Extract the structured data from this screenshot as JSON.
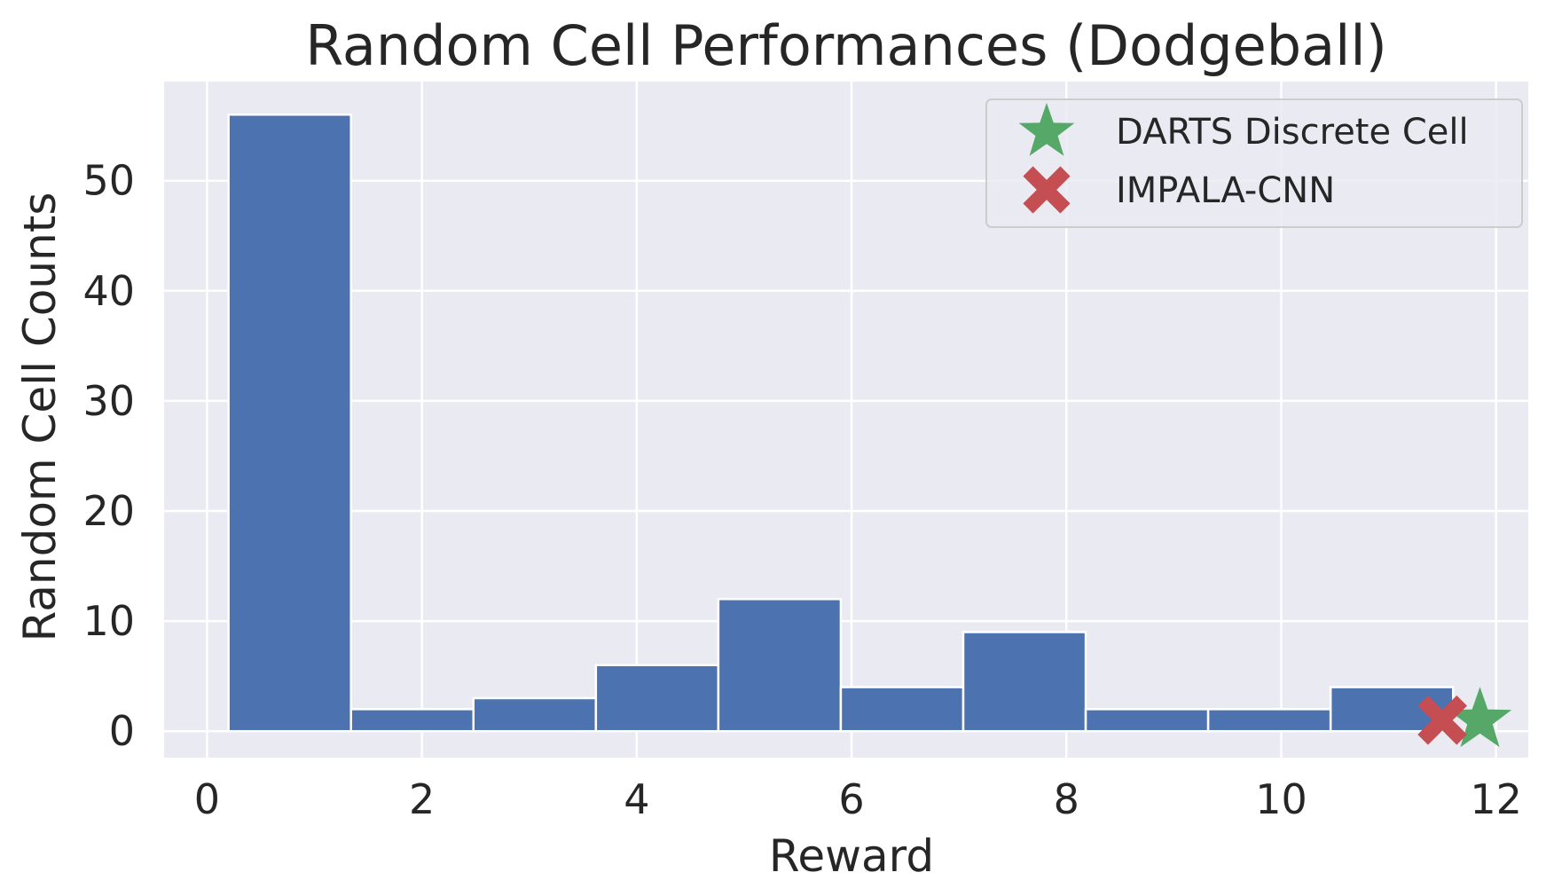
{
  "chart_data": {
    "type": "bar",
    "subtype": "histogram",
    "title": "Random Cell Performances (Dodgeball)",
    "xlabel": "Reward",
    "ylabel": "Random Cell Counts",
    "xlim": [
      -0.4,
      12.3
    ],
    "ylim": [
      -2.4,
      59
    ],
    "xticks": [
      0,
      2,
      4,
      6,
      8,
      10,
      12
    ],
    "yticks": [
      0,
      10,
      20,
      30,
      40,
      50
    ],
    "grid": true,
    "legend_position": "top-right",
    "bin_color": "#4c72b0",
    "bins": [
      {
        "x0": 0.2,
        "x1": 1.34,
        "count": 56
      },
      {
        "x0": 1.34,
        "x1": 2.48,
        "count": 2
      },
      {
        "x0": 2.48,
        "x1": 3.62,
        "count": 3
      },
      {
        "x0": 3.62,
        "x1": 4.76,
        "count": 6
      },
      {
        "x0": 4.76,
        "x1": 5.9,
        "count": 12
      },
      {
        "x0": 5.9,
        "x1": 7.04,
        "count": 4
      },
      {
        "x0": 7.04,
        "x1": 8.18,
        "count": 9
      },
      {
        "x0": 8.18,
        "x1": 9.32,
        "count": 2
      },
      {
        "x0": 9.32,
        "x1": 10.46,
        "count": 2
      },
      {
        "x0": 10.46,
        "x1": 11.6,
        "count": 4
      }
    ],
    "markers": [
      {
        "name": "DARTS Discrete Cell",
        "x": 11.85,
        "y": 1,
        "marker": "star",
        "color": "#55a868"
      },
      {
        "name": "IMPALA-CNN",
        "x": 11.5,
        "y": 1,
        "marker": "x",
        "color": "#c44e52"
      }
    ]
  }
}
